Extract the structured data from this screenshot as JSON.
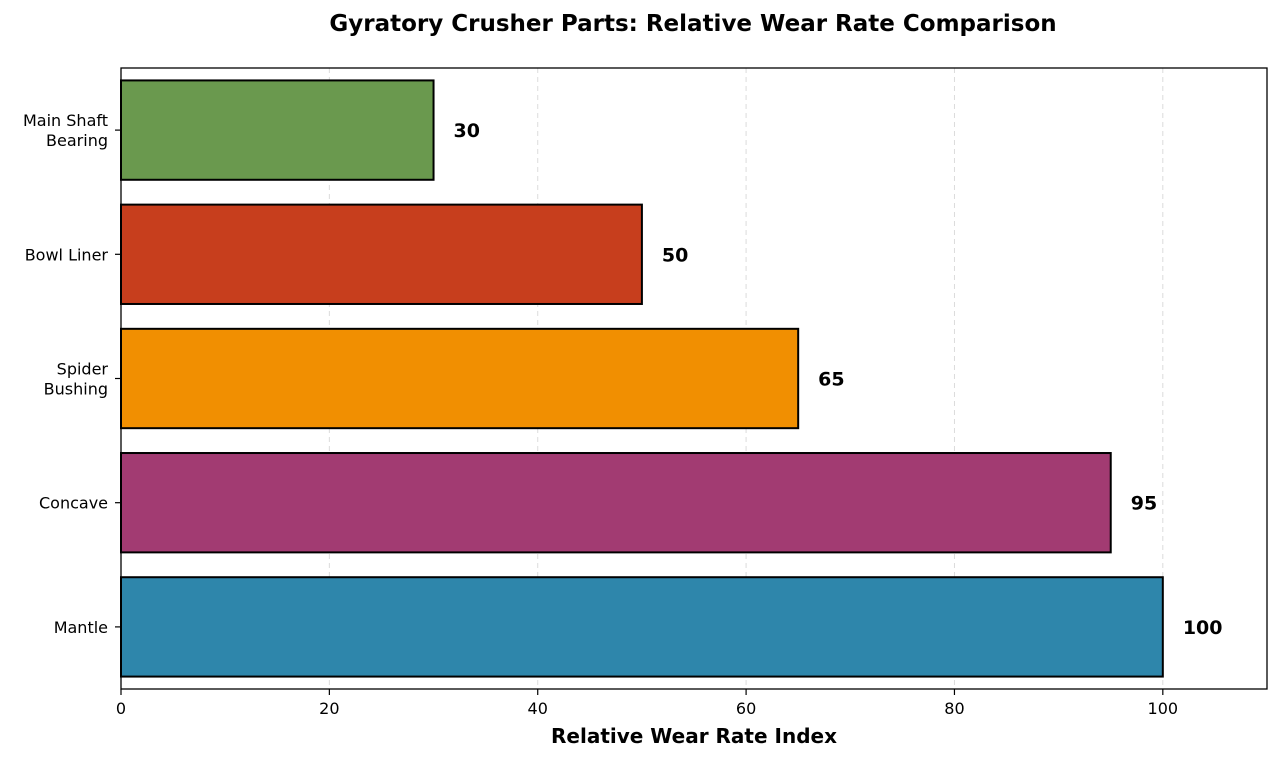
{
  "chart_data": {
    "type": "bar",
    "orientation": "horizontal",
    "title": "Gyratory Crusher Parts: Relative Wear Rate Comparison",
    "xlabel": "Relative Wear Rate Index",
    "ylabel": "",
    "xlim": [
      0,
      110
    ],
    "xticks": [
      0,
      20,
      40,
      60,
      80,
      100
    ],
    "grid": "x-dashed",
    "categories": [
      {
        "lines": [
          "Mantle"
        ]
      },
      {
        "lines": [
          "Concave"
        ]
      },
      {
        "lines": [
          "Spider",
          "Bushing"
        ]
      },
      {
        "lines": [
          "Bowl Liner"
        ]
      },
      {
        "lines": [
          "Main Shaft",
          "Bearing"
        ]
      }
    ],
    "values": [
      100,
      95,
      65,
      50,
      30
    ],
    "value_labels": [
      "100",
      "95",
      "65",
      "50",
      "30"
    ],
    "colors": [
      "#2e86ab",
      "#a23b72",
      "#f18f01",
      "#c73e1d",
      "#6a994e"
    ],
    "edge_color": "#000000"
  }
}
